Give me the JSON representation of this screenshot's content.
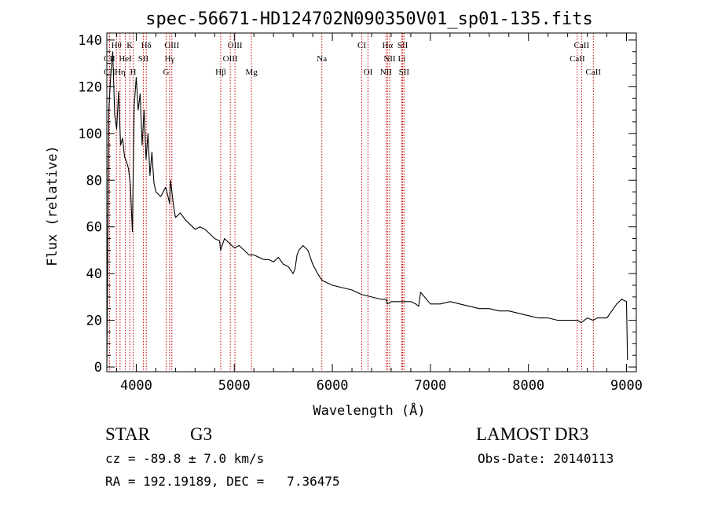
{
  "chart_data": {
    "type": "line",
    "title": "spec-56671-HD124702N090350V01_sp01-135.fits",
    "xlabel": "Wavelength (Å)",
    "ylabel": "Flux (relative)",
    "xlim": [
      3700,
      9100
    ],
    "ylim": [
      -2,
      143
    ],
    "xticks": [
      4000,
      5000,
      6000,
      7000,
      8000,
      9000
    ],
    "yticks": [
      0,
      20,
      40,
      60,
      80,
      100,
      120,
      140
    ],
    "series": [
      {
        "name": "spectrum",
        "x": [
          3700,
          3720,
          3740,
          3760,
          3780,
          3800,
          3820,
          3840,
          3860,
          3880,
          3900,
          3920,
          3940,
          3960,
          3980,
          4000,
          4020,
          4040,
          4060,
          4080,
          4100,
          4120,
          4140,
          4160,
          4180,
          4200,
          4250,
          4300,
          4330,
          4340,
          4350,
          4380,
          4400,
          4450,
          4500,
          4550,
          4600,
          4650,
          4700,
          4750,
          4800,
          4850,
          4860,
          4900,
          4950,
          5000,
          5050,
          5100,
          5150,
          5200,
          5250,
          5300,
          5350,
          5400,
          5450,
          5500,
          5550,
          5600,
          5620,
          5640,
          5660,
          5700,
          5750,
          5800,
          5850,
          5880,
          5900,
          5950,
          6000,
          6100,
          6200,
          6300,
          6400,
          6500,
          6550,
          6563,
          6600,
          6700,
          6800,
          6850,
          6880,
          6900,
          7000,
          7100,
          7200,
          7300,
          7400,
          7500,
          7600,
          7700,
          7800,
          7900,
          8000,
          8100,
          8200,
          8300,
          8400,
          8500,
          8540,
          8600,
          8660,
          8700,
          8800,
          8850,
          8900,
          8950,
          9000,
          9010
        ],
        "y": [
          0,
          110,
          125,
          135,
          108,
          102,
          118,
          95,
          98,
          90,
          88,
          85,
          78,
          58,
          112,
          124,
          110,
          117,
          95,
          110,
          89,
          100,
          82,
          92,
          79,
          75,
          73,
          77,
          72,
          70,
          80,
          69,
          64,
          66,
          63,
          61,
          59,
          60,
          59,
          57,
          55,
          54,
          50,
          55,
          53,
          51,
          52,
          50,
          48,
          48,
          47,
          46,
          46,
          45,
          47,
          44,
          43,
          40,
          42,
          48,
          50,
          52,
          50,
          44,
          40,
          38,
          37,
          36,
          35,
          34,
          33,
          31,
          30,
          29,
          29,
          27,
          28,
          28,
          28,
          27,
          26,
          32,
          27,
          27,
          28,
          27,
          26,
          25,
          25,
          24,
          24,
          23,
          22,
          21,
          21,
          20,
          20,
          20,
          19,
          21,
          20,
          21,
          21,
          24,
          27,
          29,
          28,
          3
        ]
      }
    ],
    "lines": [
      {
        "label": "Hθ",
        "x": 3798,
        "row": 1
      },
      {
        "label": "K",
        "x": 3934,
        "row": 1
      },
      {
        "label": "Hδ",
        "x": 4102,
        "row": 1
      },
      {
        "label": "OIII",
        "x": 4363,
        "row": 1
      },
      {
        "label": "OIII",
        "x": 5007,
        "row": 1
      },
      {
        "label": "CI",
        "x": 6300,
        "row": 1
      },
      {
        "label": "Hα",
        "x": 6563,
        "row": 1
      },
      {
        "label": "SII",
        "x": 6717,
        "row": 1
      },
      {
        "label": "CaII",
        "x": 8542,
        "row": 1
      },
      {
        "label": "CII",
        "x": 3727,
        "row": 2
      },
      {
        "label": "HeI",
        "x": 3889,
        "row": 2
      },
      {
        "label": "SII",
        "x": 4072,
        "row": 2
      },
      {
        "label": "Hγ",
        "x": 4340,
        "row": 2
      },
      {
        "label": "OIII",
        "x": 4959,
        "row": 2
      },
      {
        "label": "Na",
        "x": 5893,
        "row": 2
      },
      {
        "label": "NII",
        "x": 6584,
        "row": 2
      },
      {
        "label": "Li",
        "x": 6708,
        "row": 2
      },
      {
        "label": "CaII",
        "x": 8498,
        "row": 2
      },
      {
        "label": "CII",
        "x": 3727,
        "row": 3
      },
      {
        "label": "Hη",
        "x": 3835,
        "row": 3
      },
      {
        "label": "H",
        "x": 3968,
        "row": 3
      },
      {
        "label": "G",
        "x": 4305,
        "row": 3
      },
      {
        "label": "Hβ",
        "x": 4861,
        "row": 3
      },
      {
        "label": "Mg",
        "x": 5175,
        "row": 3
      },
      {
        "label": "OI",
        "x": 6364,
        "row": 3
      },
      {
        "label": "NII",
        "x": 6548,
        "row": 3
      },
      {
        "label": "SII",
        "x": 6731,
        "row": 3
      },
      {
        "label": "CaII",
        "x": 8662,
        "row": 3
      }
    ]
  },
  "info": {
    "object_class": "STAR",
    "subclass": "G3",
    "survey": "LAMOST DR3",
    "cz_text": "cz = -89.8 ± 7.0 km/s",
    "obs_date": "Obs-Date: 20140113",
    "coords_text": "RA = 192.19189, DEC =   7.36475"
  },
  "colors": {
    "spectrum": "#000000",
    "line_markers": "#cc0000",
    "axes": "#000000"
  }
}
